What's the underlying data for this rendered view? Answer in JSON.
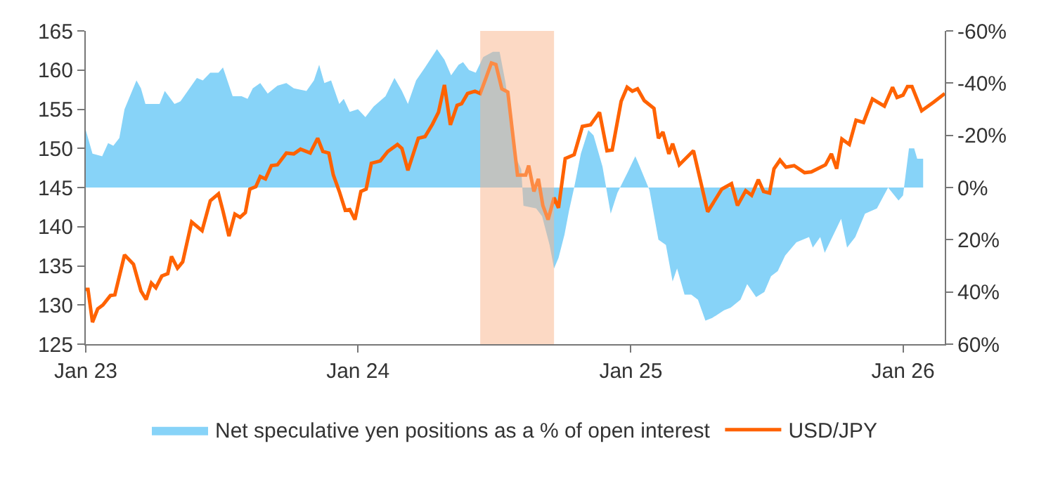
{
  "chart_data": {
    "type": "line",
    "xlim": [
      "2023-01-01",
      "2026-02-26"
    ],
    "xticks": [
      {
        "value": "2023-01-01",
        "label": "Jan 23"
      },
      {
        "value": "2024-01-01",
        "label": "Jan 24"
      },
      {
        "value": "2025-01-01",
        "label": "Jan 25"
      },
      {
        "value": "2026-01-01",
        "label": "Jan 26"
      }
    ],
    "ylim": [
      125,
      165
    ],
    "yticks": [
      125,
      130,
      135,
      140,
      145,
      150,
      155,
      160,
      165
    ],
    "y2lim": [
      60,
      -60
    ],
    "y2ticks": [
      {
        "value": -60,
        "label": "-60%"
      },
      {
        "value": -40,
        "label": "-40%"
      },
      {
        "value": -20,
        "label": "-20%"
      },
      {
        "value": 0,
        "label": "0%"
      },
      {
        "value": 20,
        "label": "20%"
      },
      {
        "value": 40,
        "label": "40%"
      },
      {
        "value": 60,
        "label": "60%"
      }
    ],
    "legend": "bottom",
    "bands": [
      {
        "axis": "x",
        "from": "2024-06-13",
        "to": "2024-09-20",
        "color": "#f9b48a"
      }
    ],
    "series": [
      {
        "name": "Net speculative yen positions as a % of open interest",
        "type": "area",
        "axis": "y2",
        "color": "#87d3f8",
        "x": [
          "2023-01-01",
          "2023-01-05",
          "2023-01-10",
          "2023-01-23",
          "2023-01-31",
          "2023-02-07",
          "2023-02-15",
          "2023-02-22",
          "2023-03-10",
          "2023-03-16",
          "2023-03-22",
          "2023-04-10",
          "2023-04-17",
          "2023-04-30",
          "2023-05-08",
          "2023-05-30",
          "2023-06-07",
          "2023-06-17",
          "2023-06-28",
          "2023-07-04",
          "2023-07-17",
          "2023-07-29",
          "2023-08-06",
          "2023-08-13",
          "2023-08-23",
          "2023-09-02",
          "2023-09-15",
          "2023-09-27",
          "2023-10-07",
          "2023-10-24",
          "2023-11-03",
          "2023-11-10",
          "2023-11-17",
          "2023-11-26",
          "2023-12-07",
          "2023-12-13",
          "2023-12-21",
          "2024-01-01",
          "2024-01-11",
          "2024-01-22",
          "2024-02-07",
          "2024-02-19",
          "2024-02-29",
          "2024-03-08",
          "2024-03-19",
          "2024-03-31",
          "2024-04-16",
          "2024-04-26",
          "2024-05-05",
          "2024-05-15",
          "2024-05-21",
          "2024-05-29",
          "2024-06-07",
          "2024-06-17",
          "2024-06-30",
          "2024-07-09",
          "2024-07-17",
          "2024-07-30",
          "2024-08-07",
          "2024-08-10",
          "2024-08-27",
          "2024-09-04",
          "2024-09-14",
          "2024-09-20",
          "2024-09-26",
          "2024-10-04",
          "2024-10-10",
          "2024-10-17",
          "2024-10-26",
          "2024-11-05",
          "2024-11-12",
          "2024-11-24",
          "2024-12-05",
          "2024-12-14",
          "2024-12-28",
          "2025-01-07",
          "2025-01-13",
          "2025-01-26",
          "2025-02-07",
          "2025-02-17",
          "2025-02-26",
          "2025-03-04",
          "2025-03-14",
          "2025-03-23",
          "2025-04-01",
          "2025-04-11",
          "2025-04-20",
          "2025-05-06",
          "2025-05-15",
          "2025-05-28",
          "2025-06-06",
          "2025-06-18",
          "2025-06-29",
          "2025-07-08",
          "2025-07-17",
          "2025-07-27",
          "2025-08-11",
          "2025-08-28",
          "2025-09-02",
          "2025-09-12",
          "2025-09-18",
          "2025-10-10",
          "2025-10-18",
          "2025-10-29",
          "2025-11-11",
          "2025-11-27",
          "2025-12-12",
          "2025-12-26",
          "2026-01-01",
          "2026-01-09",
          "2026-01-16",
          "2026-01-20",
          "2026-01-28"
        ],
        "values": [
          -22,
          -18,
          -13,
          -12,
          -17,
          -16,
          -19,
          -30,
          -41,
          -38,
          -32,
          -32,
          -37,
          -32,
          -33,
          -42,
          -41,
          -44,
          -44,
          -46,
          -35,
          -35,
          -34,
          -38,
          -40,
          -36,
          -39,
          -40,
          -38,
          -37,
          -41,
          -47,
          -40,
          -41,
          -32,
          -34,
          -29,
          -30,
          -27,
          -31,
          -35,
          -42,
          -37,
          -32,
          -41,
          -46,
          -53,
          -49,
          -43,
          -47,
          -48,
          -45,
          -44,
          -50,
          -52,
          -52,
          -40,
          -12,
          -7,
          7,
          8,
          11,
          22,
          31,
          27,
          18,
          9,
          0,
          -13,
          -22,
          -20,
          -8,
          10,
          2,
          -6,
          -12,
          -8,
          1,
          20,
          22,
          36,
          31,
          41,
          41,
          43,
          51,
          50,
          47,
          46,
          43,
          37,
          42,
          40,
          34,
          32,
          26,
          21,
          19,
          23,
          19,
          25,
          12,
          23,
          19,
          10,
          8,
          0,
          5,
          3,
          -15,
          -15,
          -11,
          -11
        ]
      },
      {
        "name": "USD/JPY",
        "color": "#ff6200",
        "x": [
          "2023-01-01",
          "2023-01-04",
          "2023-01-10",
          "2023-01-17",
          "2023-01-24",
          "2023-02-03",
          "2023-02-09",
          "2023-02-22",
          "2023-03-06",
          "2023-03-16",
          "2023-03-23",
          "2023-03-30",
          "2023-04-05",
          "2023-04-13",
          "2023-04-21",
          "2023-04-26",
          "2023-05-04",
          "2023-05-11",
          "2023-05-23",
          "2023-06-06",
          "2023-06-17",
          "2023-06-28",
          "2023-07-04",
          "2023-07-12",
          "2023-07-20",
          "2023-07-27",
          "2023-08-03",
          "2023-08-09",
          "2023-08-17",
          "2023-08-23",
          "2023-08-30",
          "2023-09-07",
          "2023-09-15",
          "2023-09-27",
          "2023-10-07",
          "2023-10-16",
          "2023-10-29",
          "2023-11-08",
          "2023-11-15",
          "2023-11-23",
          "2023-11-29",
          "2023-12-07",
          "2023-12-15",
          "2023-12-21",
          "2023-12-28",
          "2024-01-05",
          "2024-01-12",
          "2024-01-19",
          "2024-01-31",
          "2024-02-10",
          "2024-02-23",
          "2024-02-29",
          "2024-03-08",
          "2024-03-22",
          "2024-03-31",
          "2024-04-10",
          "2024-04-18",
          "2024-04-26",
          "2024-05-04",
          "2024-05-13",
          "2024-05-19",
          "2024-05-27",
          "2024-06-06",
          "2024-06-13",
          "2024-06-20",
          "2024-06-28",
          "2024-07-04",
          "2024-07-12",
          "2024-07-20",
          "2024-08-02",
          "2024-08-13",
          "2024-08-17",
          "2024-08-24",
          "2024-08-30",
          "2024-09-05",
          "2024-09-12",
          "2024-09-20",
          "2024-09-26",
          "2024-10-05",
          "2024-10-17",
          "2024-10-28",
          "2024-11-08",
          "2024-11-20",
          "2024-11-30",
          "2024-12-07",
          "2024-12-19",
          "2024-12-27",
          "2025-01-03",
          "2025-01-10",
          "2025-01-19",
          "2025-02-01",
          "2025-02-07",
          "2025-02-13",
          "2025-02-21",
          "2025-02-26",
          "2025-03-07",
          "2025-03-26",
          "2025-04-14",
          "2025-05-03",
          "2025-05-16",
          "2025-05-24",
          "2025-06-04",
          "2025-06-12",
          "2025-06-21",
          "2025-06-28",
          "2025-07-06",
          "2025-07-12",
          "2025-07-20",
          "2025-07-28",
          "2025-08-08",
          "2025-08-22",
          "2025-08-31",
          "2025-09-19",
          "2025-09-27",
          "2025-10-04",
          "2025-10-11",
          "2025-10-21",
          "2025-10-30",
          "2025-11-09",
          "2025-11-21",
          "2025-12-07",
          "2025-12-18",
          "2025-12-24",
          "2026-01-01",
          "2026-01-07",
          "2026-01-13",
          "2026-01-26",
          "2026-02-11",
          "2026-02-26"
        ],
        "values": [
          132,
          132,
          127.8,
          129.5,
          130,
          131.2,
          131.3,
          136.4,
          135.2,
          131.8,
          130.7,
          132.8,
          132.2,
          133.7,
          134,
          136.2,
          134.7,
          135.5,
          140.6,
          139.5,
          143.3,
          144.2,
          142,
          138.8,
          141.6,
          141.2,
          141.8,
          144.8,
          145.1,
          146.4,
          146.1,
          147.8,
          147.9,
          149.4,
          149.3,
          149.9,
          149.4,
          151.3,
          149.6,
          149.4,
          146.6,
          144.5,
          142.1,
          142.2,
          140.9,
          144.5,
          144.8,
          148.1,
          148.4,
          149.6,
          150.5,
          150,
          147.2,
          151.3,
          151.5,
          153.1,
          154.6,
          158.1,
          153,
          155.5,
          155.7,
          157,
          157.3,
          157,
          158.8,
          160.9,
          160.7,
          157.6,
          157.2,
          146.6,
          146.6,
          147.8,
          144.5,
          146.1,
          142.7,
          140.9,
          143.7,
          142.4,
          148.7,
          149.2,
          152.8,
          153,
          154.6,
          149.7,
          149.8,
          156,
          157.8,
          157.3,
          157.6,
          156.1,
          155.1,
          151.3,
          152.1,
          149.3,
          150.6,
          147.9,
          149.7,
          141.9,
          144.8,
          145.5,
          142.7,
          144.6,
          144,
          146,
          144.5,
          144.3,
          147.4,
          148.5,
          147.6,
          147.8,
          146.9,
          147,
          147.9,
          149.3,
          147.4,
          151.2,
          150.5,
          153.6,
          153.3,
          156.3,
          155.4,
          157.8,
          156.5,
          156.8,
          157.9,
          157.9,
          154.8,
          155.9,
          157
        ]
      }
    ]
  }
}
